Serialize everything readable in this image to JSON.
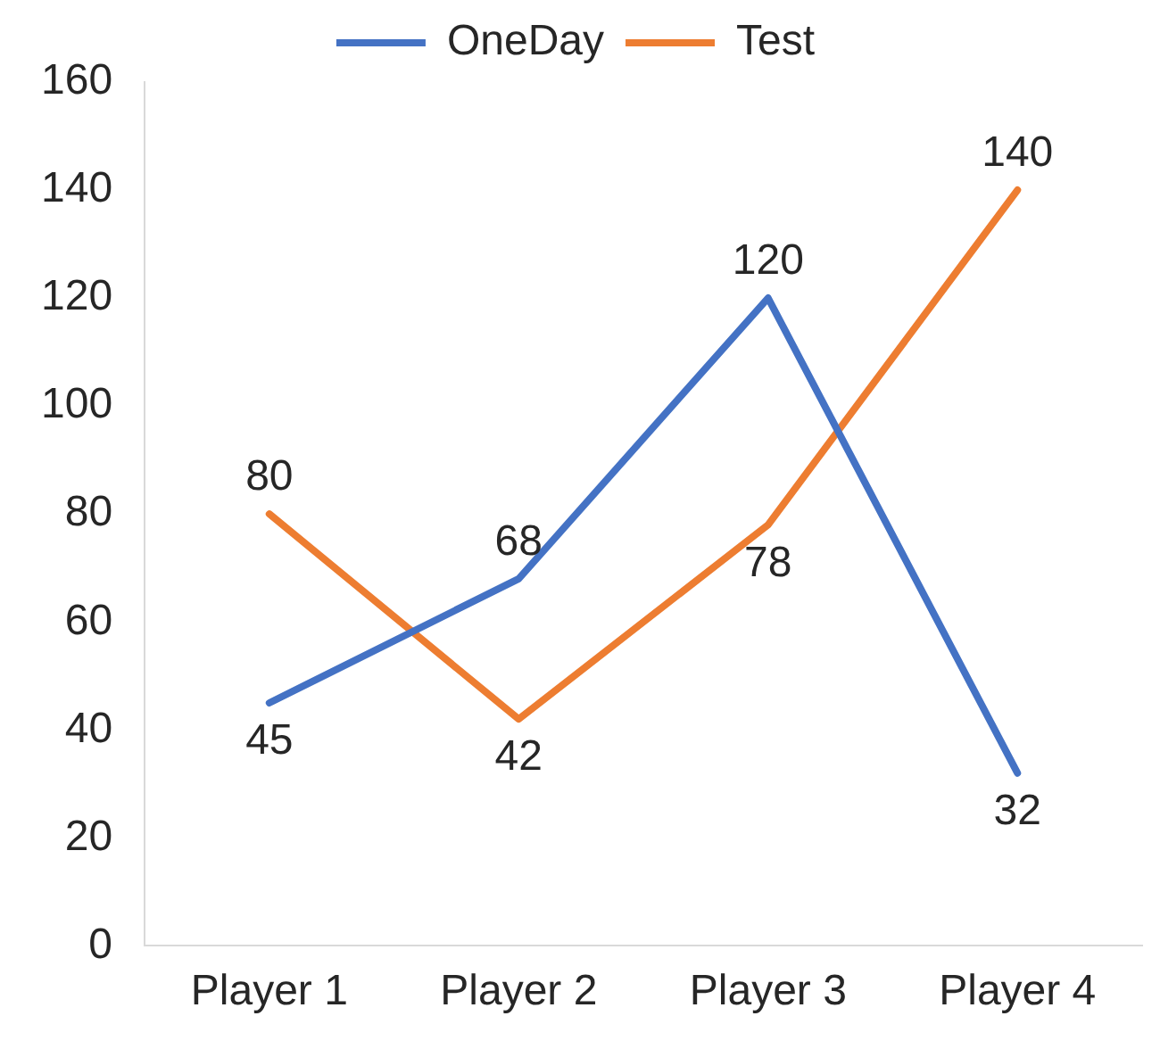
{
  "chart_data": {
    "type": "line",
    "categories": [
      "Player 1",
      "Player 2",
      "Player 3",
      "Player 4"
    ],
    "series": [
      {
        "name": "OneDay",
        "color": "#4472c4",
        "values": [
          45,
          68,
          120,
          32
        ]
      },
      {
        "name": "Test",
        "color": "#ed7d31",
        "values": [
          80,
          42,
          78,
          140
        ]
      }
    ],
    "ylim": [
      0,
      160
    ],
    "yticks": [
      0,
      20,
      40,
      60,
      80,
      100,
      120,
      140,
      160
    ],
    "grid": false,
    "legend": "top",
    "marker": "none",
    "line_style": "solid",
    "data_labels": true
  }
}
